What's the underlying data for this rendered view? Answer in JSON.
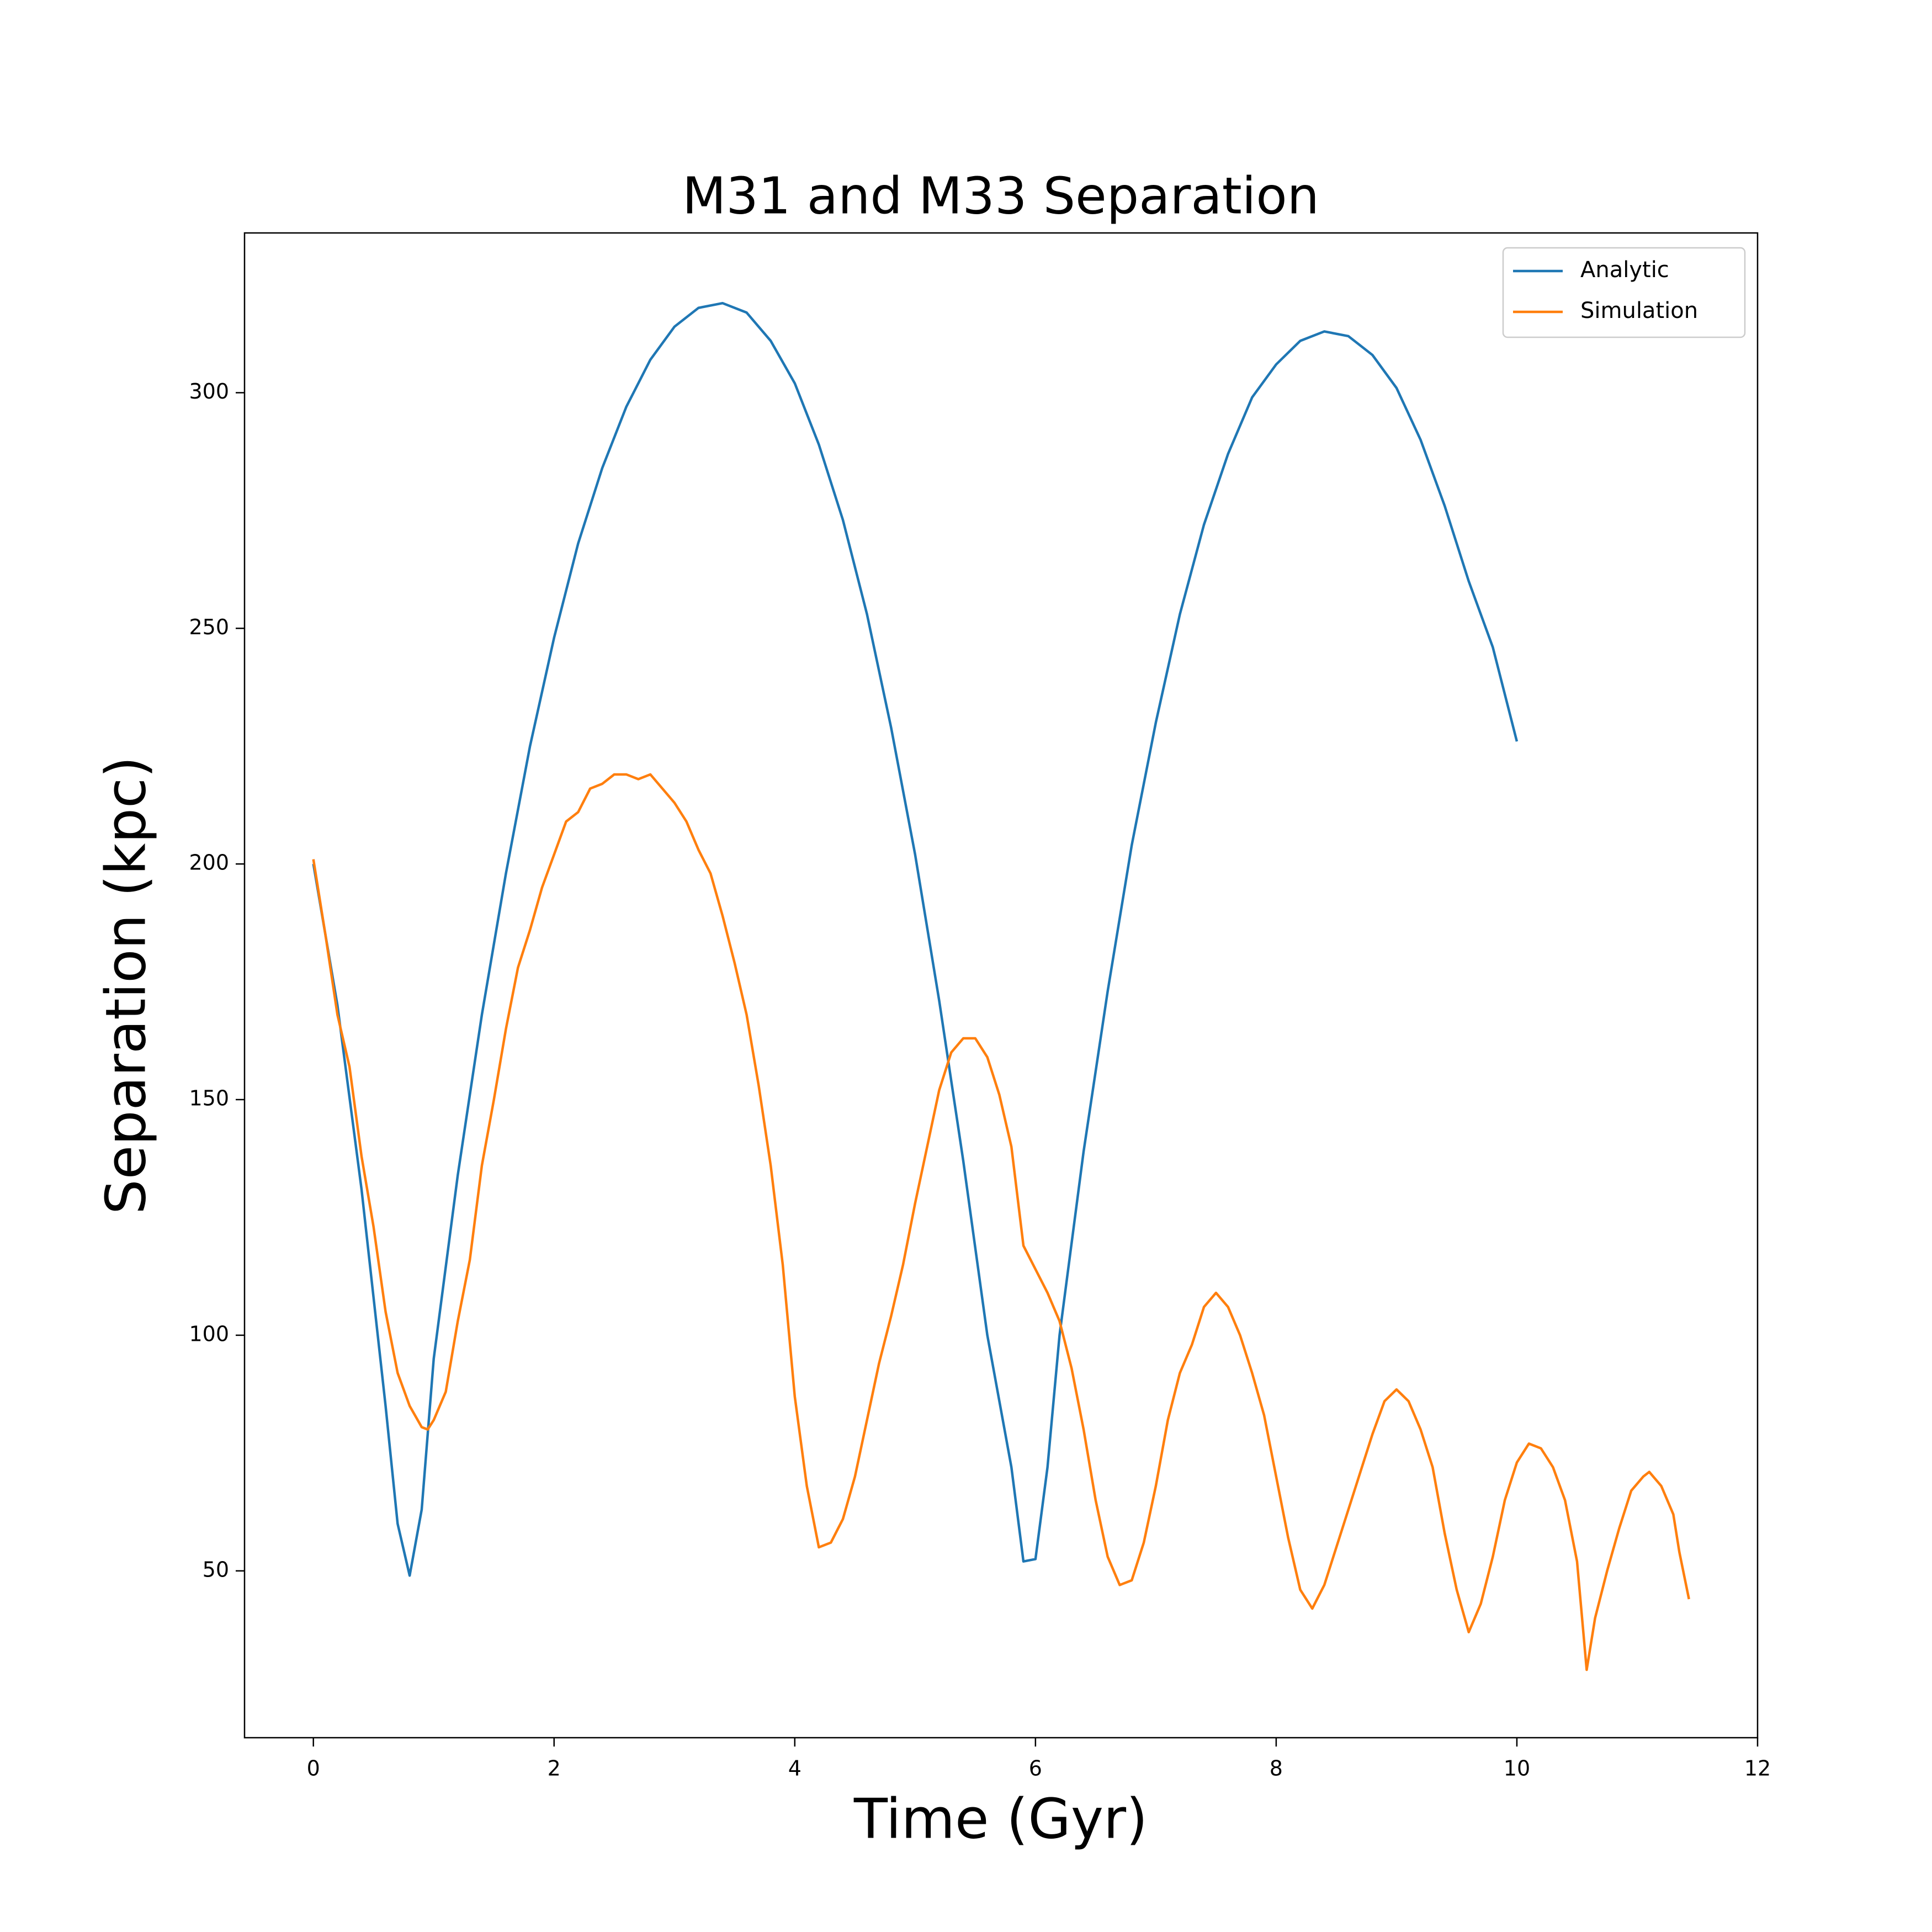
{
  "chart_data": {
    "type": "line",
    "title": "M31 and M33 Separation",
    "x_label": "Time (Gyr)",
    "y_label": "Separation (kpc)",
    "xlim": [
      -0.572,
      12.0
    ],
    "ylim": [
      14.6,
      333.9
    ],
    "xticks": [
      0,
      2,
      4,
      6,
      8,
      10,
      12
    ],
    "yticks": [
      50,
      100,
      150,
      200,
      250,
      300
    ],
    "legend": "upper right",
    "grid": false,
    "series": [
      {
        "name": "Analytic",
        "color": "#1f77b4",
        "x": [
          0,
          0.2,
          0.4,
          0.6,
          0.7,
          0.8,
          0.9,
          1.0,
          1.2,
          1.4,
          1.6,
          1.8,
          2.0,
          2.2,
          2.4,
          2.6,
          2.8,
          3.0,
          3.2,
          3.4,
          3.6,
          3.8,
          4.0,
          4.2,
          4.4,
          4.6,
          4.8,
          5.0,
          5.2,
          5.4,
          5.6,
          5.8,
          5.9,
          6.0,
          6.1,
          6.2,
          6.4,
          6.6,
          6.8,
          7.0,
          7.2,
          7.4,
          7.6,
          7.8,
          8.0,
          8.2,
          8.4,
          8.6,
          8.8,
          9.0,
          9.2,
          9.4,
          9.6,
          9.8,
          10.0
        ],
        "values": [
          200,
          170,
          131,
          85,
          60,
          49,
          63,
          95,
          134,
          168,
          198,
          225,
          248,
          268,
          284,
          297,
          307,
          314,
          318,
          319,
          317,
          311,
          302,
          289,
          273,
          253,
          229,
          202,
          171,
          137,
          100,
          72,
          52,
          52.5,
          72,
          100,
          139,
          173,
          204,
          230,
          253,
          272,
          287,
          299,
          306,
          311,
          313,
          312,
          308,
          301,
          290,
          276,
          260,
          246,
          226
        ]
      },
      {
        "name": "Simulation",
        "color": "#ff7f0e",
        "x": [
          0,
          0.1,
          0.2,
          0.3,
          0.4,
          0.5,
          0.6,
          0.7,
          0.8,
          0.9,
          0.95,
          1.0,
          1.1,
          1.2,
          1.3,
          1.4,
          1.5,
          1.6,
          1.7,
          1.8,
          1.9,
          2.0,
          2.1,
          2.2,
          2.3,
          2.4,
          2.5,
          2.6,
          2.7,
          2.8,
          2.9,
          3.0,
          3.1,
          3.2,
          3.3,
          3.4,
          3.5,
          3.6,
          3.7,
          3.8,
          3.9,
          4.0,
          4.1,
          4.2,
          4.3,
          4.4,
          4.5,
          4.6,
          4.7,
          4.8,
          4.9,
          5.0,
          5.1,
          5.2,
          5.3,
          5.4,
          5.5,
          5.6,
          5.7,
          5.8,
          5.9,
          6.0,
          6.1,
          6.2,
          6.3,
          6.4,
          6.5,
          6.6,
          6.7,
          6.8,
          6.9,
          7.0,
          7.1,
          7.2,
          7.3,
          7.4,
          7.5,
          7.6,
          7.7,
          7.8,
          7.9,
          8.0,
          8.1,
          8.2,
          8.3,
          8.4,
          8.5,
          8.6,
          8.7,
          8.8,
          8.9,
          9.0,
          9.1,
          9.2,
          9.3,
          9.4,
          9.5,
          9.6,
          9.7,
          9.8,
          9.9,
          10.0,
          10.1,
          10.2,
          10.3,
          10.4,
          10.5,
          10.58,
          10.65,
          10.75,
          10.85,
          10.95,
          11.05,
          11.1,
          11.2,
          11.3,
          11.35,
          11.43
        ],
        "values": [
          201,
          185,
          168,
          157,
          138,
          123,
          105,
          92,
          85,
          80.5,
          80,
          82,
          88,
          103,
          116,
          136,
          150,
          165,
          178,
          186,
          195,
          202,
          209,
          211,
          216,
          217,
          219,
          219,
          218,
          219,
          216,
          213,
          209,
          203,
          198,
          189,
          179,
          168,
          153,
          136,
          115,
          87,
          68,
          55,
          56,
          61,
          70,
          82,
          94,
          104,
          115,
          128,
          140,
          152,
          160,
          163,
          163,
          159,
          151,
          140,
          119,
          114,
          109,
          103,
          93,
          80,
          65,
          53,
          47,
          48,
          56,
          68,
          82,
          92,
          98,
          106,
          109,
          106,
          100,
          92,
          83,
          70,
          57,
          46,
          42,
          47,
          55,
          63,
          71,
          79,
          86,
          88.5,
          86,
          80,
          72,
          58,
          46,
          37,
          43,
          53,
          65,
          73,
          77,
          76,
          72,
          65,
          52,
          29,
          40,
          50,
          59,
          67,
          70,
          71,
          68,
          62,
          54,
          44
        ]
      }
    ]
  }
}
